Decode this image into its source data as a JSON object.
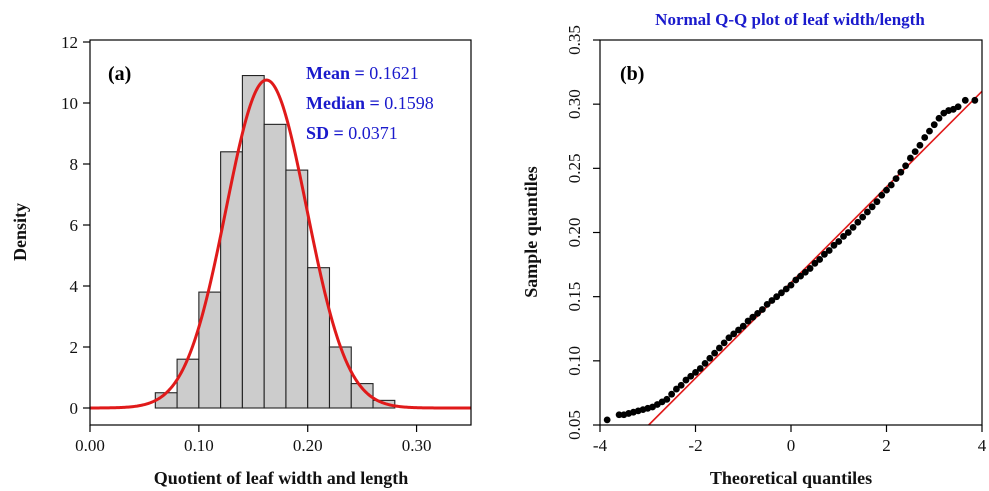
{
  "chart_data": [
    {
      "type": "bar",
      "panel_label": "(a)",
      "title": "",
      "xlabel": "Quotient of leaf width and length",
      "ylabel": "Density",
      "xlim": [
        0.0,
        0.35
      ],
      "ylim": [
        0,
        12
      ],
      "xticks": [
        "0.00",
        "0.10",
        "0.20",
        "0.30"
      ],
      "xtick_values": [
        0.0,
        0.1,
        0.2,
        0.3
      ],
      "yticks": [
        "0",
        "2",
        "4",
        "6",
        "8",
        "10",
        "12"
      ],
      "ytick_values": [
        0,
        2,
        4,
        6,
        8,
        10,
        12
      ],
      "bins": [
        {
          "x0": 0.06,
          "x1": 0.08,
          "density": 0.5
        },
        {
          "x0": 0.08,
          "x1": 0.1,
          "density": 1.6
        },
        {
          "x0": 0.1,
          "x1": 0.12,
          "density": 3.8
        },
        {
          "x0": 0.12,
          "x1": 0.14,
          "density": 8.4
        },
        {
          "x0": 0.14,
          "x1": 0.16,
          "density": 10.9
        },
        {
          "x0": 0.16,
          "x1": 0.18,
          "density": 9.3
        },
        {
          "x0": 0.18,
          "x1": 0.2,
          "density": 7.8
        },
        {
          "x0": 0.2,
          "x1": 0.22,
          "density": 4.6
        },
        {
          "x0": 0.22,
          "x1": 0.24,
          "density": 2.0
        },
        {
          "x0": 0.24,
          "x1": 0.26,
          "density": 0.8
        },
        {
          "x0": 0.26,
          "x1": 0.28,
          "density": 0.25
        }
      ],
      "bar_color": "#cccccc",
      "curve_color": "#e01a1a",
      "normal_curve": {
        "mean": 0.1621,
        "sd": 0.0371
      },
      "stats": [
        {
          "label": "Mean",
          "value": "0.1621"
        },
        {
          "label": "Median",
          "value": "0.1598"
        },
        {
          "label": "SD",
          "value": "0.0371"
        }
      ]
    },
    {
      "type": "scatter",
      "panel_label": "(b)",
      "title": "Normal Q-Q plot of leaf width/length",
      "xlabel": "Theoretical quantiles",
      "ylabel": "Sample quantiles",
      "xlim": [
        -4,
        4
      ],
      "ylim": [
        0.05,
        0.35
      ],
      "xticks": [
        "-4",
        "-2",
        "0",
        "2",
        "4"
      ],
      "xtick_values": [
        -4,
        -2,
        0,
        2,
        4
      ],
      "yticks": [
        "0.05",
        "0.10",
        "0.15",
        "0.20",
        "0.25",
        "0.30",
        "0.35"
      ],
      "ytick_values": [
        0.05,
        0.1,
        0.15,
        0.2,
        0.25,
        0.3,
        0.35
      ],
      "point_color": "#000000",
      "line_color": "#e01a1a",
      "reference_line": {
        "x": [
          -2.98,
          4.0
        ],
        "y": [
          0.05,
          0.31
        ]
      },
      "points": [
        {
          "x": -3.85,
          "y": 0.054
        },
        {
          "x": -3.6,
          "y": 0.058
        },
        {
          "x": -3.5,
          "y": 0.058
        },
        {
          "x": -3.4,
          "y": 0.059
        },
        {
          "x": -3.3,
          "y": 0.06
        },
        {
          "x": -3.2,
          "y": 0.061
        },
        {
          "x": -3.1,
          "y": 0.062
        },
        {
          "x": -3.0,
          "y": 0.063
        },
        {
          "x": -2.9,
          "y": 0.064
        },
        {
          "x": -2.8,
          "y": 0.066
        },
        {
          "x": -2.7,
          "y": 0.068
        },
        {
          "x": -2.6,
          "y": 0.07
        },
        {
          "x": -2.5,
          "y": 0.074
        },
        {
          "x": -2.4,
          "y": 0.078
        },
        {
          "x": -2.3,
          "y": 0.081
        },
        {
          "x": -2.2,
          "y": 0.085
        },
        {
          "x": -2.1,
          "y": 0.088
        },
        {
          "x": -2.0,
          "y": 0.091
        },
        {
          "x": -1.9,
          "y": 0.094
        },
        {
          "x": -1.8,
          "y": 0.098
        },
        {
          "x": -1.7,
          "y": 0.102
        },
        {
          "x": -1.6,
          "y": 0.106
        },
        {
          "x": -1.5,
          "y": 0.11
        },
        {
          "x": -1.4,
          "y": 0.114
        },
        {
          "x": -1.3,
          "y": 0.118
        },
        {
          "x": -1.2,
          "y": 0.121
        },
        {
          "x": -1.1,
          "y": 0.124
        },
        {
          "x": -1.0,
          "y": 0.127
        },
        {
          "x": -0.9,
          "y": 0.131
        },
        {
          "x": -0.8,
          "y": 0.134
        },
        {
          "x": -0.7,
          "y": 0.137
        },
        {
          "x": -0.6,
          "y": 0.14
        },
        {
          "x": -0.5,
          "y": 0.144
        },
        {
          "x": -0.4,
          "y": 0.147
        },
        {
          "x": -0.3,
          "y": 0.15
        },
        {
          "x": -0.2,
          "y": 0.153
        },
        {
          "x": -0.1,
          "y": 0.156
        },
        {
          "x": 0.0,
          "y": 0.159
        },
        {
          "x": 0.1,
          "y": 0.163
        },
        {
          "x": 0.2,
          "y": 0.166
        },
        {
          "x": 0.3,
          "y": 0.169
        },
        {
          "x": 0.4,
          "y": 0.172
        },
        {
          "x": 0.5,
          "y": 0.176
        },
        {
          "x": 0.6,
          "y": 0.179
        },
        {
          "x": 0.7,
          "y": 0.183
        },
        {
          "x": 0.8,
          "y": 0.186
        },
        {
          "x": 0.9,
          "y": 0.19
        },
        {
          "x": 1.0,
          "y": 0.193
        },
        {
          "x": 1.1,
          "y": 0.197
        },
        {
          "x": 1.2,
          "y": 0.2
        },
        {
          "x": 1.3,
          "y": 0.204
        },
        {
          "x": 1.4,
          "y": 0.208
        },
        {
          "x": 1.5,
          "y": 0.212
        },
        {
          "x": 1.6,
          "y": 0.216
        },
        {
          "x": 1.7,
          "y": 0.22
        },
        {
          "x": 1.8,
          "y": 0.224
        },
        {
          "x": 1.9,
          "y": 0.229
        },
        {
          "x": 2.0,
          "y": 0.233
        },
        {
          "x": 2.1,
          "y": 0.237
        },
        {
          "x": 2.2,
          "y": 0.242
        },
        {
          "x": 2.3,
          "y": 0.247
        },
        {
          "x": 2.4,
          "y": 0.252
        },
        {
          "x": 2.5,
          "y": 0.258
        },
        {
          "x": 2.6,
          "y": 0.263
        },
        {
          "x": 2.7,
          "y": 0.268
        },
        {
          "x": 2.8,
          "y": 0.274
        },
        {
          "x": 2.9,
          "y": 0.279
        },
        {
          "x": 3.0,
          "y": 0.284
        },
        {
          "x": 3.1,
          "y": 0.289
        },
        {
          "x": 3.2,
          "y": 0.293
        },
        {
          "x": 3.3,
          "y": 0.295
        },
        {
          "x": 3.4,
          "y": 0.296
        },
        {
          "x": 3.5,
          "y": 0.298
        },
        {
          "x": 3.65,
          "y": 0.303
        },
        {
          "x": 3.85,
          "y": 0.303
        }
      ]
    }
  ]
}
